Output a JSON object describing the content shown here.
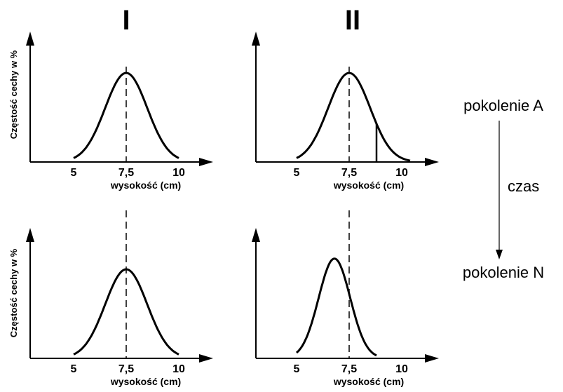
{
  "columns": [
    "I",
    "II"
  ],
  "generations": {
    "top": "pokolenie A",
    "time": "czas",
    "bottom": "pokolenie N"
  },
  "axis": {
    "ylabel": "Częstość cechy w %",
    "xlabel": "wysokość (cm)",
    "ticks": [
      {
        "value": 5,
        "label": "5"
      },
      {
        "value": 7.5,
        "label": "7,5"
      },
      {
        "value": 10,
        "label": "10"
      }
    ]
  },
  "chart_data": [
    {
      "type": "line",
      "column": "I",
      "generation": "pokolenie A",
      "mean": 7.5,
      "sd": 1.0,
      "x_range": [
        5,
        10
      ],
      "marker": 7.5,
      "marker_style": "dashed"
    },
    {
      "type": "line",
      "column": "II",
      "generation": "pokolenie A",
      "mean": 7.5,
      "sd": 1.0,
      "x_range": [
        5,
        10.4
      ],
      "marker": 7.5,
      "marker_style": "dashed",
      "cutoff": 8.8
    },
    {
      "type": "line",
      "column": "I",
      "generation": "pokolenie N",
      "mean": 7.5,
      "sd": 1.0,
      "x_range": [
        5,
        10
      ],
      "marker": 7.5,
      "marker_style": "dashed"
    },
    {
      "type": "line",
      "column": "II",
      "generation": "pokolenie N",
      "mean": 6.8,
      "sd": 0.75,
      "x_range": [
        5,
        8.8
      ],
      "marker": 7.5,
      "marker_style": "dashed"
    }
  ]
}
